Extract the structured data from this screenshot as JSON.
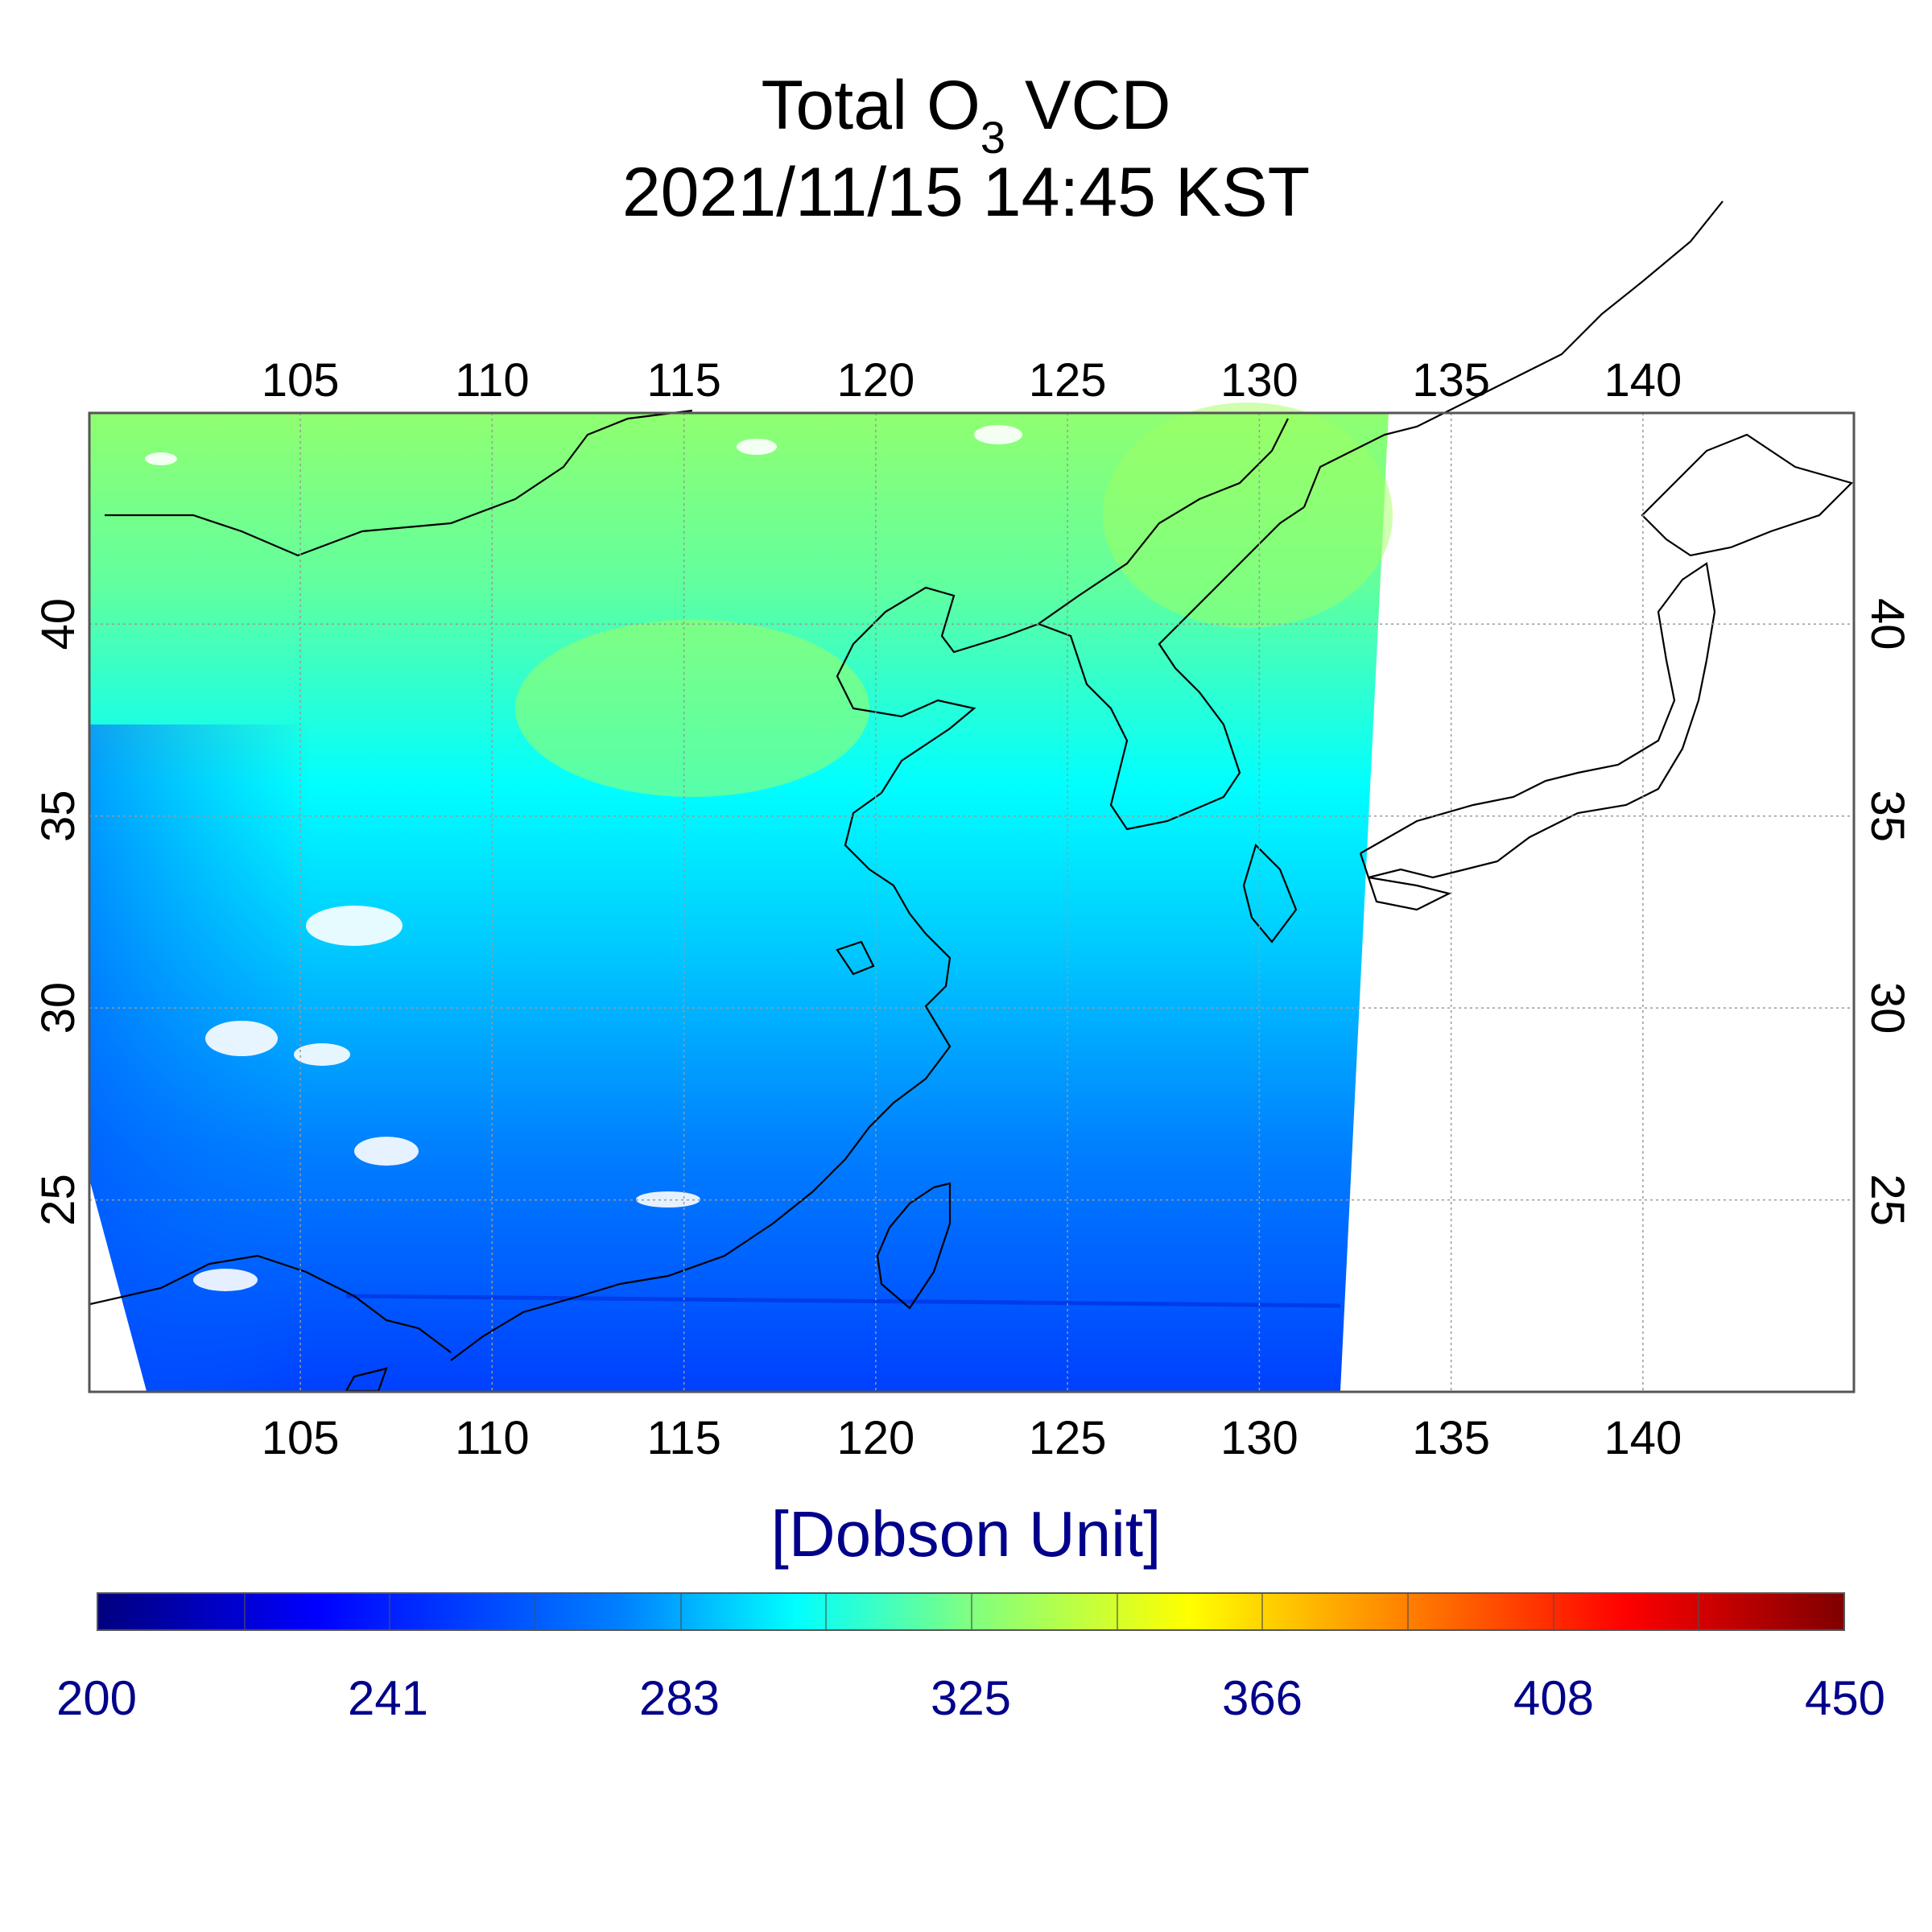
{
  "title": {
    "main_prefix": "Total O",
    "main_subscript": "3",
    "main_suffix": " VCD",
    "timestamp": "2021/11/15 14:45 KST"
  },
  "map": {
    "lon_min": 99.5,
    "lon_max": 145.5,
    "lat_min": 20.0,
    "lat_max": 45.5,
    "lon_ticks": [
      "105",
      "110",
      "115",
      "120",
      "125",
      "130",
      "135",
      "140"
    ],
    "lat_ticks": [
      "25",
      "30",
      "35",
      "40"
    ],
    "colors": {
      "ozone_low": "#0040ff",
      "ozone_mid": "#00ffff",
      "ozone_high": "#90ff70",
      "coastline": "#000000",
      "gridline": "#9a9a9a"
    }
  },
  "colorbar": {
    "label": "[Dobson Unit]",
    "min": 200,
    "max": 450,
    "tick_labels": [
      "200",
      "241",
      "283",
      "325",
      "366",
      "408",
      "450"
    ],
    "colormap": "jet"
  }
}
